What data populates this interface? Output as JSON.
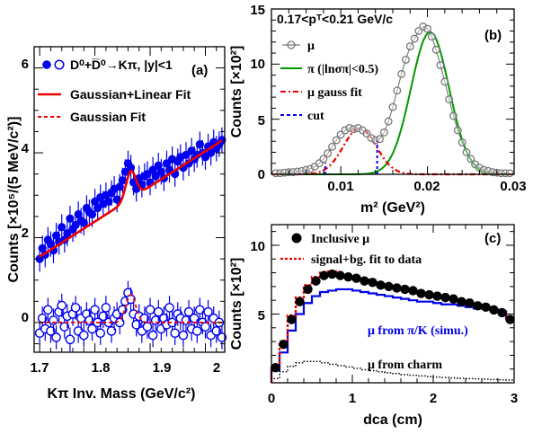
{
  "chart_data": [
    {
      "id": "a",
      "type": "scatter",
      "panel_label": "(a)",
      "xlabel": "Kπ Inv. Mass (GeV/c²)",
      "ylabel": "Counts [×10⁵/(5 MeV/c²)]",
      "xlim": [
        1.69,
        2.035
      ],
      "ylim": [
        -0.7,
        6.5
      ],
      "xticks": [
        "1.7",
        "1.8",
        "1.9",
        "2"
      ],
      "yticks": [
        "0",
        "2",
        "4",
        "6"
      ],
      "legend": [
        "D⁰+D̅⁰→Kπ, |y|<1",
        "Gaussian+Linear Fit",
        "Gaussian Fit"
      ],
      "colors": {
        "data": "#0000ee",
        "fit": "#ee0000"
      },
      "fit_params": {
        "mean": 1.865,
        "sigma": 0.009,
        "amplitude": 0.65,
        "bg_intercept": 1.55,
        "bg_slope": 8.3
      },
      "series": [
        {
          "kind": "filled",
          "x": [
            1.7,
            1.705,
            1.71,
            1.715,
            1.72,
            1.725,
            1.73,
            1.735,
            1.74,
            1.745,
            1.75,
            1.755,
            1.76,
            1.765,
            1.77,
            1.775,
            1.78,
            1.785,
            1.79,
            1.795,
            1.8,
            1.805,
            1.81,
            1.815,
            1.82,
            1.825,
            1.83,
            1.835,
            1.84,
            1.845,
            1.85,
            1.855,
            1.86,
            1.865,
            1.87,
            1.875,
            1.88,
            1.885,
            1.89,
            1.895,
            1.9,
            1.905,
            1.91,
            1.915,
            1.92,
            1.925,
            1.93,
            1.935,
            1.94,
            1.945,
            1.95,
            1.955,
            1.96,
            1.965,
            1.97,
            1.975,
            1.98,
            1.985,
            1.99,
            1.995,
            2.0,
            2.005,
            2.01,
            2.015,
            2.02,
            2.025,
            2.03
          ],
          "y": [
            1.5,
            1.75,
            1.6,
            1.95,
            1.85,
            1.7,
            2.05,
            1.9,
            2.25,
            1.95,
            2.1,
            2.45,
            2.2,
            2.3,
            2.55,
            2.4,
            2.35,
            2.7,
            2.6,
            2.55,
            2.85,
            2.7,
            2.95,
            2.8,
            3.0,
            2.85,
            3.05,
            3.15,
            2.9,
            3.2,
            3.35,
            3.55,
            3.75,
            3.65,
            3.3,
            3.15,
            3.4,
            3.25,
            3.45,
            3.5,
            3.3,
            3.6,
            3.45,
            3.7,
            3.55,
            3.4,
            3.75,
            3.6,
            3.85,
            3.5,
            3.8,
            3.9,
            3.65,
            3.95,
            3.75,
            4.05,
            3.85,
            3.95,
            4.2,
            4.0,
            3.9,
            4.15,
            4.0,
            4.25,
            4.1,
            4.2,
            4.3
          ],
          "err": 0.3
        },
        {
          "kind": "open",
          "x": [
            1.7,
            1.705,
            1.71,
            1.715,
            1.72,
            1.725,
            1.73,
            1.735,
            1.74,
            1.745,
            1.75,
            1.755,
            1.76,
            1.765,
            1.77,
            1.775,
            1.78,
            1.785,
            1.79,
            1.795,
            1.8,
            1.805,
            1.81,
            1.815,
            1.82,
            1.825,
            1.83,
            1.835,
            1.84,
            1.845,
            1.85,
            1.855,
            1.86,
            1.865,
            1.87,
            1.875,
            1.88,
            1.885,
            1.89,
            1.895,
            1.9,
            1.905,
            1.91,
            1.915,
            1.92,
            1.925,
            1.93,
            1.935,
            1.94,
            1.945,
            1.95,
            1.955,
            1.96,
            1.965,
            1.97,
            1.975,
            1.98,
            1.985,
            1.99,
            1.995,
            2.0,
            2.005,
            2.01,
            2.015,
            2.02,
            2.025,
            2.03
          ],
          "y": [
            -0.25,
            0.1,
            -0.15,
            0.3,
            -0.2,
            0.05,
            -0.35,
            0.25,
            0.4,
            -0.1,
            0.15,
            -0.4,
            0.2,
            0.35,
            -0.2,
            0.1,
            -0.3,
            0.2,
            0.05,
            -0.15,
            0.3,
            0.0,
            -0.25,
            0.15,
            0.35,
            0.0,
            -0.2,
            0.1,
            0.2,
            0.0,
            0.3,
            0.5,
            0.7,
            0.55,
            0.2,
            -0.05,
            0.15,
            -0.2,
            0.1,
            -0.1,
            0.3,
            -0.3,
            0.05,
            0.25,
            -0.15,
            0.1,
            -0.05,
            0.35,
            0.0,
            -0.25,
            0.2,
            0.1,
            -0.3,
            0.05,
            0.25,
            -0.15,
            0.1,
            -0.2,
            0.3,
            0.0,
            -0.1,
            0.25,
            -0.3,
            0.1,
            -0.2,
            0.0,
            -0.35
          ],
          "err": 0.28
        }
      ]
    },
    {
      "id": "b",
      "type": "line",
      "panel_label": "(b)",
      "title": "0.17<pᵀ<0.21 GeV/c",
      "xlabel": "m² (GeV²)",
      "ylabel": "Counts [×10²]",
      "xlim": [
        0.002,
        0.03
      ],
      "ylim": [
        0,
        15
      ],
      "xticks": [
        "0.01",
        "0.02",
        "0.03"
      ],
      "yticks": [
        "0",
        "5",
        "10",
        "15"
      ],
      "legend": [
        "μ",
        "π (|lnσπ|<0.5)",
        "μ gauss fit",
        "cut"
      ],
      "colors": {
        "mu": "#777777",
        "pi": "#009900",
        "fit": "#ee0000",
        "cut": "#0000ee"
      },
      "gauss_params": {
        "mu": {
          "mean": 0.0122,
          "sigma": 0.0019,
          "amp": 4.2
        },
        "pi": {
          "mean": 0.0203,
          "sigma": 0.0022,
          "amp": 12.9
        }
      },
      "cuts": [
        0.0082,
        0.0142
      ],
      "series": [
        {
          "name": "μ",
          "x": [
            0.0025,
            0.003,
            0.0035,
            0.004,
            0.0045,
            0.005,
            0.0055,
            0.006,
            0.0065,
            0.007,
            0.0075,
            0.008,
            0.0085,
            0.009,
            0.0095,
            0.01,
            0.0105,
            0.011,
            0.0115,
            0.012,
            0.0125,
            0.013,
            0.0135,
            0.014,
            0.0145,
            0.015,
            0.0155,
            0.016,
            0.0165,
            0.017,
            0.0175,
            0.018,
            0.0185,
            0.019,
            0.0195,
            0.02,
            0.0205,
            0.021,
            0.0215,
            0.022,
            0.0225,
            0.023,
            0.0235,
            0.024,
            0.0245,
            0.025,
            0.0255,
            0.026,
            0.0265,
            0.027,
            0.0275,
            0.028,
            0.0285,
            0.029,
            0.0295
          ],
          "y": [
            0.1,
            0.1,
            0.15,
            0.2,
            0.2,
            0.25,
            0.3,
            0.4,
            0.5,
            0.7,
            1.0,
            1.4,
            1.9,
            2.5,
            3.1,
            3.6,
            4.0,
            4.2,
            4.1,
            4.2,
            4.0,
            3.7,
            3.3,
            3.1,
            3.2,
            3.8,
            4.8,
            6.1,
            7.6,
            9.1,
            10.4,
            11.6,
            12.3,
            13.0,
            13.4,
            13.2,
            12.5,
            11.3,
            9.9,
            8.4,
            6.8,
            5.3,
            4.0,
            2.9,
            2.0,
            1.4,
            0.9,
            0.6,
            0.4,
            0.3,
            0.2,
            0.15,
            0.1,
            0.1,
            0.1
          ]
        }
      ]
    },
    {
      "id": "c",
      "type": "bar",
      "panel_label": "(c)",
      "xlabel": "dca (cm)",
      "ylabel": "Counts [×10²]",
      "xlim": [
        0,
        3
      ],
      "ylim": [
        0,
        11.5
      ],
      "xticks": [
        "0",
        "1",
        "2",
        "3"
      ],
      "yticks": [
        "5",
        "10"
      ],
      "legend": [
        "Inclusive μ",
        "signal+bg. fit to data"
      ],
      "text_labels": [
        "μ from π/K (simu.)",
        "μ from charm"
      ],
      "colors": {
        "data": "#000000",
        "fit": "#ee0000",
        "pik": "#0000ee",
        "charm": "#000000"
      },
      "bin_edges": [
        0.0,
        0.1,
        0.2,
        0.3,
        0.4,
        0.5,
        0.6,
        0.7,
        0.8,
        0.9,
        1.0,
        1.1,
        1.2,
        1.3,
        1.4,
        1.5,
        1.6,
        1.7,
        1.8,
        1.9,
        2.0,
        2.1,
        2.2,
        2.3,
        2.4,
        2.5,
        2.6,
        2.7,
        2.8,
        2.9,
        3.0
      ],
      "series": [
        {
          "name": "Inclusive μ",
          "x": [
            0.05,
            0.15,
            0.25,
            0.35,
            0.45,
            0.55,
            0.65,
            0.75,
            0.85,
            0.95,
            1.05,
            1.15,
            1.25,
            1.35,
            1.45,
            1.55,
            1.65,
            1.75,
            1.85,
            1.95,
            2.05,
            2.15,
            2.25,
            2.35,
            2.45,
            2.55,
            2.65,
            2.75,
            2.85,
            2.95
          ],
          "y": [
            1.1,
            2.8,
            4.6,
            5.9,
            6.8,
            7.4,
            7.8,
            7.9,
            7.8,
            7.7,
            7.6,
            7.4,
            7.3,
            7.1,
            7.0,
            6.9,
            6.8,
            6.7,
            6.5,
            6.4,
            6.3,
            6.2,
            6.1,
            5.9,
            5.8,
            5.6,
            5.5,
            5.3,
            5.1,
            4.6
          ]
        },
        {
          "name": "signal+bg. fit to data",
          "y": [
            1.2,
            3.0,
            4.9,
            6.2,
            7.1,
            7.7,
            8.0,
            8.1,
            7.9,
            7.8,
            7.6,
            7.5,
            7.3,
            7.2,
            7.1,
            6.9,
            6.8,
            6.6,
            6.5,
            6.4,
            6.3,
            6.1,
            6.0,
            5.9,
            5.7,
            5.6,
            5.5,
            5.3,
            5.2,
            4.8
          ]
        },
        {
          "name": "μ from π/K (simu.)",
          "y": [
            0.9,
            2.2,
            3.8,
            5.0,
            5.8,
            6.3,
            6.6,
            6.7,
            6.8,
            6.8,
            6.7,
            6.6,
            6.5,
            6.4,
            6.3,
            6.2,
            6.1,
            6.0,
            5.9,
            5.9,
            5.8,
            5.7,
            5.7,
            5.6,
            5.5,
            5.4,
            5.4,
            5.3,
            5.2,
            4.7
          ]
        },
        {
          "name": "μ from charm",
          "y": [
            0.3,
            0.8,
            1.2,
            1.45,
            1.55,
            1.55,
            1.45,
            1.35,
            1.25,
            1.15,
            1.05,
            0.95,
            0.88,
            0.8,
            0.73,
            0.67,
            0.6,
            0.55,
            0.5,
            0.45,
            0.42,
            0.38,
            0.35,
            0.32,
            0.3,
            0.28,
            0.26,
            0.24,
            0.22,
            0.2
          ]
        }
      ]
    }
  ]
}
